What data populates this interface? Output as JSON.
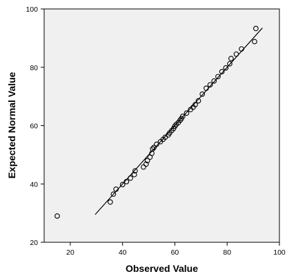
{
  "chart_data": {
    "type": "scatter",
    "title": "",
    "xlabel": "Observed Value",
    "ylabel": "Expected Normal Value",
    "xlim": [
      10,
      100
    ],
    "ylim": [
      20,
      100
    ],
    "x_ticks": [
      "20",
      "40",
      "60",
      "80",
      "100"
    ],
    "y_ticks": [
      "20",
      "40",
      "60",
      "80",
      "100"
    ],
    "grid": false,
    "background_color": "#f0f0f0",
    "marker_color": "#000000",
    "line_color": "#000000",
    "reference_line": {
      "x": [
        29.5,
        93.5
      ],
      "y": [
        29.5,
        93.5
      ]
    },
    "points": [
      {
        "x": 15.0,
        "y": 29.0
      },
      {
        "x": 35.3,
        "y": 33.8
      },
      {
        "x": 36.5,
        "y": 36.5
      },
      {
        "x": 37.5,
        "y": 38.2
      },
      {
        "x": 40.0,
        "y": 39.8
      },
      {
        "x": 41.5,
        "y": 40.8
      },
      {
        "x": 43.0,
        "y": 42.0
      },
      {
        "x": 44.5,
        "y": 43.2
      },
      {
        "x": 44.8,
        "y": 44.5
      },
      {
        "x": 48.0,
        "y": 45.8
      },
      {
        "x": 49.0,
        "y": 46.8
      },
      {
        "x": 49.5,
        "y": 48.0
      },
      {
        "x": 50.5,
        "y": 49.2
      },
      {
        "x": 51.2,
        "y": 50.5
      },
      {
        "x": 51.5,
        "y": 52.0
      },
      {
        "x": 52.0,
        "y": 52.5
      },
      {
        "x": 53.0,
        "y": 53.6
      },
      {
        "x": 54.5,
        "y": 54.5
      },
      {
        "x": 55.5,
        "y": 55.3
      },
      {
        "x": 56.3,
        "y": 56.0
      },
      {
        "x": 57.5,
        "y": 56.8
      },
      {
        "x": 58.0,
        "y": 57.5
      },
      {
        "x": 58.8,
        "y": 58.3
      },
      {
        "x": 59.5,
        "y": 59.0
      },
      {
        "x": 60.0,
        "y": 59.8
      },
      {
        "x": 60.5,
        "y": 60.4
      },
      {
        "x": 61.3,
        "y": 61.0
      },
      {
        "x": 62.0,
        "y": 61.8
      },
      {
        "x": 62.5,
        "y": 62.4
      },
      {
        "x": 63.0,
        "y": 63.2
      },
      {
        "x": 64.5,
        "y": 64.3
      },
      {
        "x": 66.0,
        "y": 65.5
      },
      {
        "x": 67.0,
        "y": 66.3
      },
      {
        "x": 67.8,
        "y": 67.2
      },
      {
        "x": 69.0,
        "y": 68.5
      },
      {
        "x": 70.5,
        "y": 70.8
      },
      {
        "x": 72.0,
        "y": 72.8
      },
      {
        "x": 73.5,
        "y": 74.0
      },
      {
        "x": 75.0,
        "y": 75.3
      },
      {
        "x": 76.5,
        "y": 76.8
      },
      {
        "x": 78.0,
        "y": 78.5
      },
      {
        "x": 79.5,
        "y": 79.8
      },
      {
        "x": 81.0,
        "y": 81.2
      },
      {
        "x": 81.5,
        "y": 83.0
      },
      {
        "x": 83.5,
        "y": 84.5
      },
      {
        "x": 85.5,
        "y": 86.3
      },
      {
        "x": 90.5,
        "y": 88.8
      },
      {
        "x": 91.0,
        "y": 93.3
      }
    ]
  }
}
